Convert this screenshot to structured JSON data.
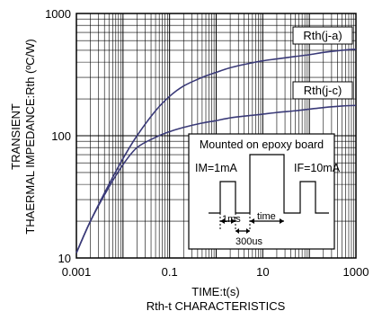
{
  "chart_data": {
    "type": "line",
    "scale": {
      "x": "log",
      "y": "log"
    },
    "xlim": [
      0.001,
      1000
    ],
    "ylim": [
      10,
      1000
    ],
    "xticks": [
      0.001,
      0.1,
      10,
      1000
    ],
    "xtick_labels": [
      "0.001",
      "0.1",
      "10",
      "1000"
    ],
    "yticks": [
      10,
      100,
      1000
    ],
    "ytick_labels": [
      "10",
      "100",
      "1000"
    ],
    "xlabel": "TIME:t(s)",
    "caption": "Rth-t CHARACTERISTICS",
    "ylabel_line1": "TRANSIENT",
    "ylabel_line2": "THAERMAL IMPEDANCE:Rth (ºC/W)",
    "grid": true,
    "line_color": "#3a3a78",
    "series": [
      {
        "name": "Rth(j-a)",
        "x": [
          0.001,
          0.002,
          0.005,
          0.01,
          0.02,
          0.05,
          0.1,
          0.2,
          0.5,
          1,
          2,
          5,
          10,
          20,
          50,
          100,
          200,
          500,
          1000
        ],
        "y": [
          11,
          20,
          40,
          65,
          100,
          160,
          210,
          255,
          300,
          330,
          360,
          390,
          410,
          425,
          445,
          460,
          480,
          500,
          510
        ]
      },
      {
        "name": "Rth(j-c)",
        "x": [
          0.001,
          0.002,
          0.005,
          0.01,
          0.02,
          0.05,
          0.1,
          0.2,
          0.5,
          1,
          2,
          5,
          10,
          20,
          50,
          100,
          200,
          500,
          1000
        ],
        "y": [
          11,
          20,
          38,
          58,
          80,
          97,
          108,
          117,
          127,
          133,
          140,
          146,
          150,
          155,
          160,
          165,
          170,
          175,
          177
        ]
      }
    ],
    "inset": {
      "title": "Mounted on epoxy board",
      "im_label": "IM=1mA",
      "if_label": "IF=10mA",
      "label_1ms": "1ms",
      "label_time": "time",
      "label_300us": "300us"
    }
  }
}
